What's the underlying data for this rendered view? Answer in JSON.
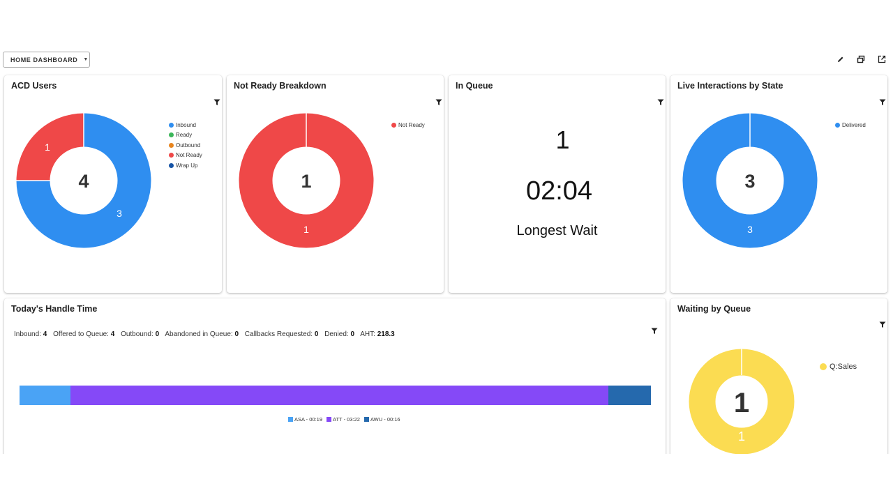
{
  "toolbar": {
    "dashboard_label": "HOME DASHBOARD",
    "caret_icon": "caret-down-icon",
    "icons": [
      "edit-pencil-icon",
      "window-restore-icon",
      "open-external-icon"
    ]
  },
  "colors": {
    "inbound": "#2f8ef0",
    "ready": "#3cb65a",
    "outbound": "#e8851f",
    "not_ready": "#ef4848",
    "wrap_up": "#1754a6",
    "delivered": "#2f8ef0",
    "q_sales": "#fbdc52",
    "asa": "#4aa3f5",
    "att": "#8549f7",
    "awu": "#2569ad"
  },
  "acd_users": {
    "title": "ACD Users",
    "total": "4",
    "segment_labels": [
      "3",
      "1"
    ],
    "legend": [
      "Inbound",
      "Ready",
      "Outbound",
      "Not Ready",
      "Wrap Up"
    ]
  },
  "not_ready_breakdown": {
    "title": "Not Ready Breakdown",
    "total": "1",
    "segment_label": "1",
    "legend": [
      "Not Ready"
    ]
  },
  "in_queue": {
    "title": "In Queue",
    "count": "1",
    "time": "02:04",
    "caption": "Longest Wait"
  },
  "live_interactions": {
    "title": "Live Interactions by State",
    "total": "3",
    "segment_label": "3",
    "legend": [
      "Delivered"
    ]
  },
  "handle_time": {
    "title": "Today's Handle Time",
    "stats": [
      {
        "label": "Inbound:",
        "value": "4"
      },
      {
        "label": "Offered to Queue:",
        "value": "4"
      },
      {
        "label": "Outbound:",
        "value": "0"
      },
      {
        "label": "Abandoned in Queue:",
        "value": "0"
      },
      {
        "label": "Callbacks Requested:",
        "value": "0"
      },
      {
        "label": "Denied:",
        "value": "0"
      },
      {
        "label": "AHT:",
        "value": "218.3"
      }
    ],
    "bar_legend": [
      "ASA - 00:19",
      "ATT - 03:22",
      "AWU - 00:16"
    ]
  },
  "waiting_by_queue": {
    "title": "Waiting by Queue",
    "total": "1",
    "segment_label": "1",
    "legend": [
      "Q:Sales"
    ]
  },
  "chart_data": [
    {
      "type": "pie",
      "title": "ACD Users",
      "categories": [
        "Inbound",
        "Ready",
        "Outbound",
        "Not Ready",
        "Wrap Up"
      ],
      "values": [
        3,
        0,
        0,
        1,
        0
      ],
      "center_label": "4",
      "legend": "top-right"
    },
    {
      "type": "pie",
      "title": "Not Ready Breakdown",
      "categories": [
        "Not Ready"
      ],
      "values": [
        1
      ],
      "center_label": "1",
      "legend": "top-right"
    },
    {
      "type": "pie",
      "title": "Live Interactions by State",
      "categories": [
        "Delivered"
      ],
      "values": [
        3
      ],
      "center_label": "3",
      "legend": "top-right"
    },
    {
      "type": "bar",
      "title": "Today's Handle Time",
      "orientation": "horizontal-stacked",
      "categories": [
        "ASA",
        "ATT",
        "AWU"
      ],
      "values_seconds": [
        19,
        202,
        16
      ],
      "value_labels": [
        "00:19",
        "03:22",
        "00:16"
      ],
      "legend": "bottom-center"
    },
    {
      "type": "pie",
      "title": "Waiting by Queue",
      "categories": [
        "Q:Sales"
      ],
      "values": [
        1
      ],
      "center_label": "1",
      "legend": "top-right"
    }
  ]
}
